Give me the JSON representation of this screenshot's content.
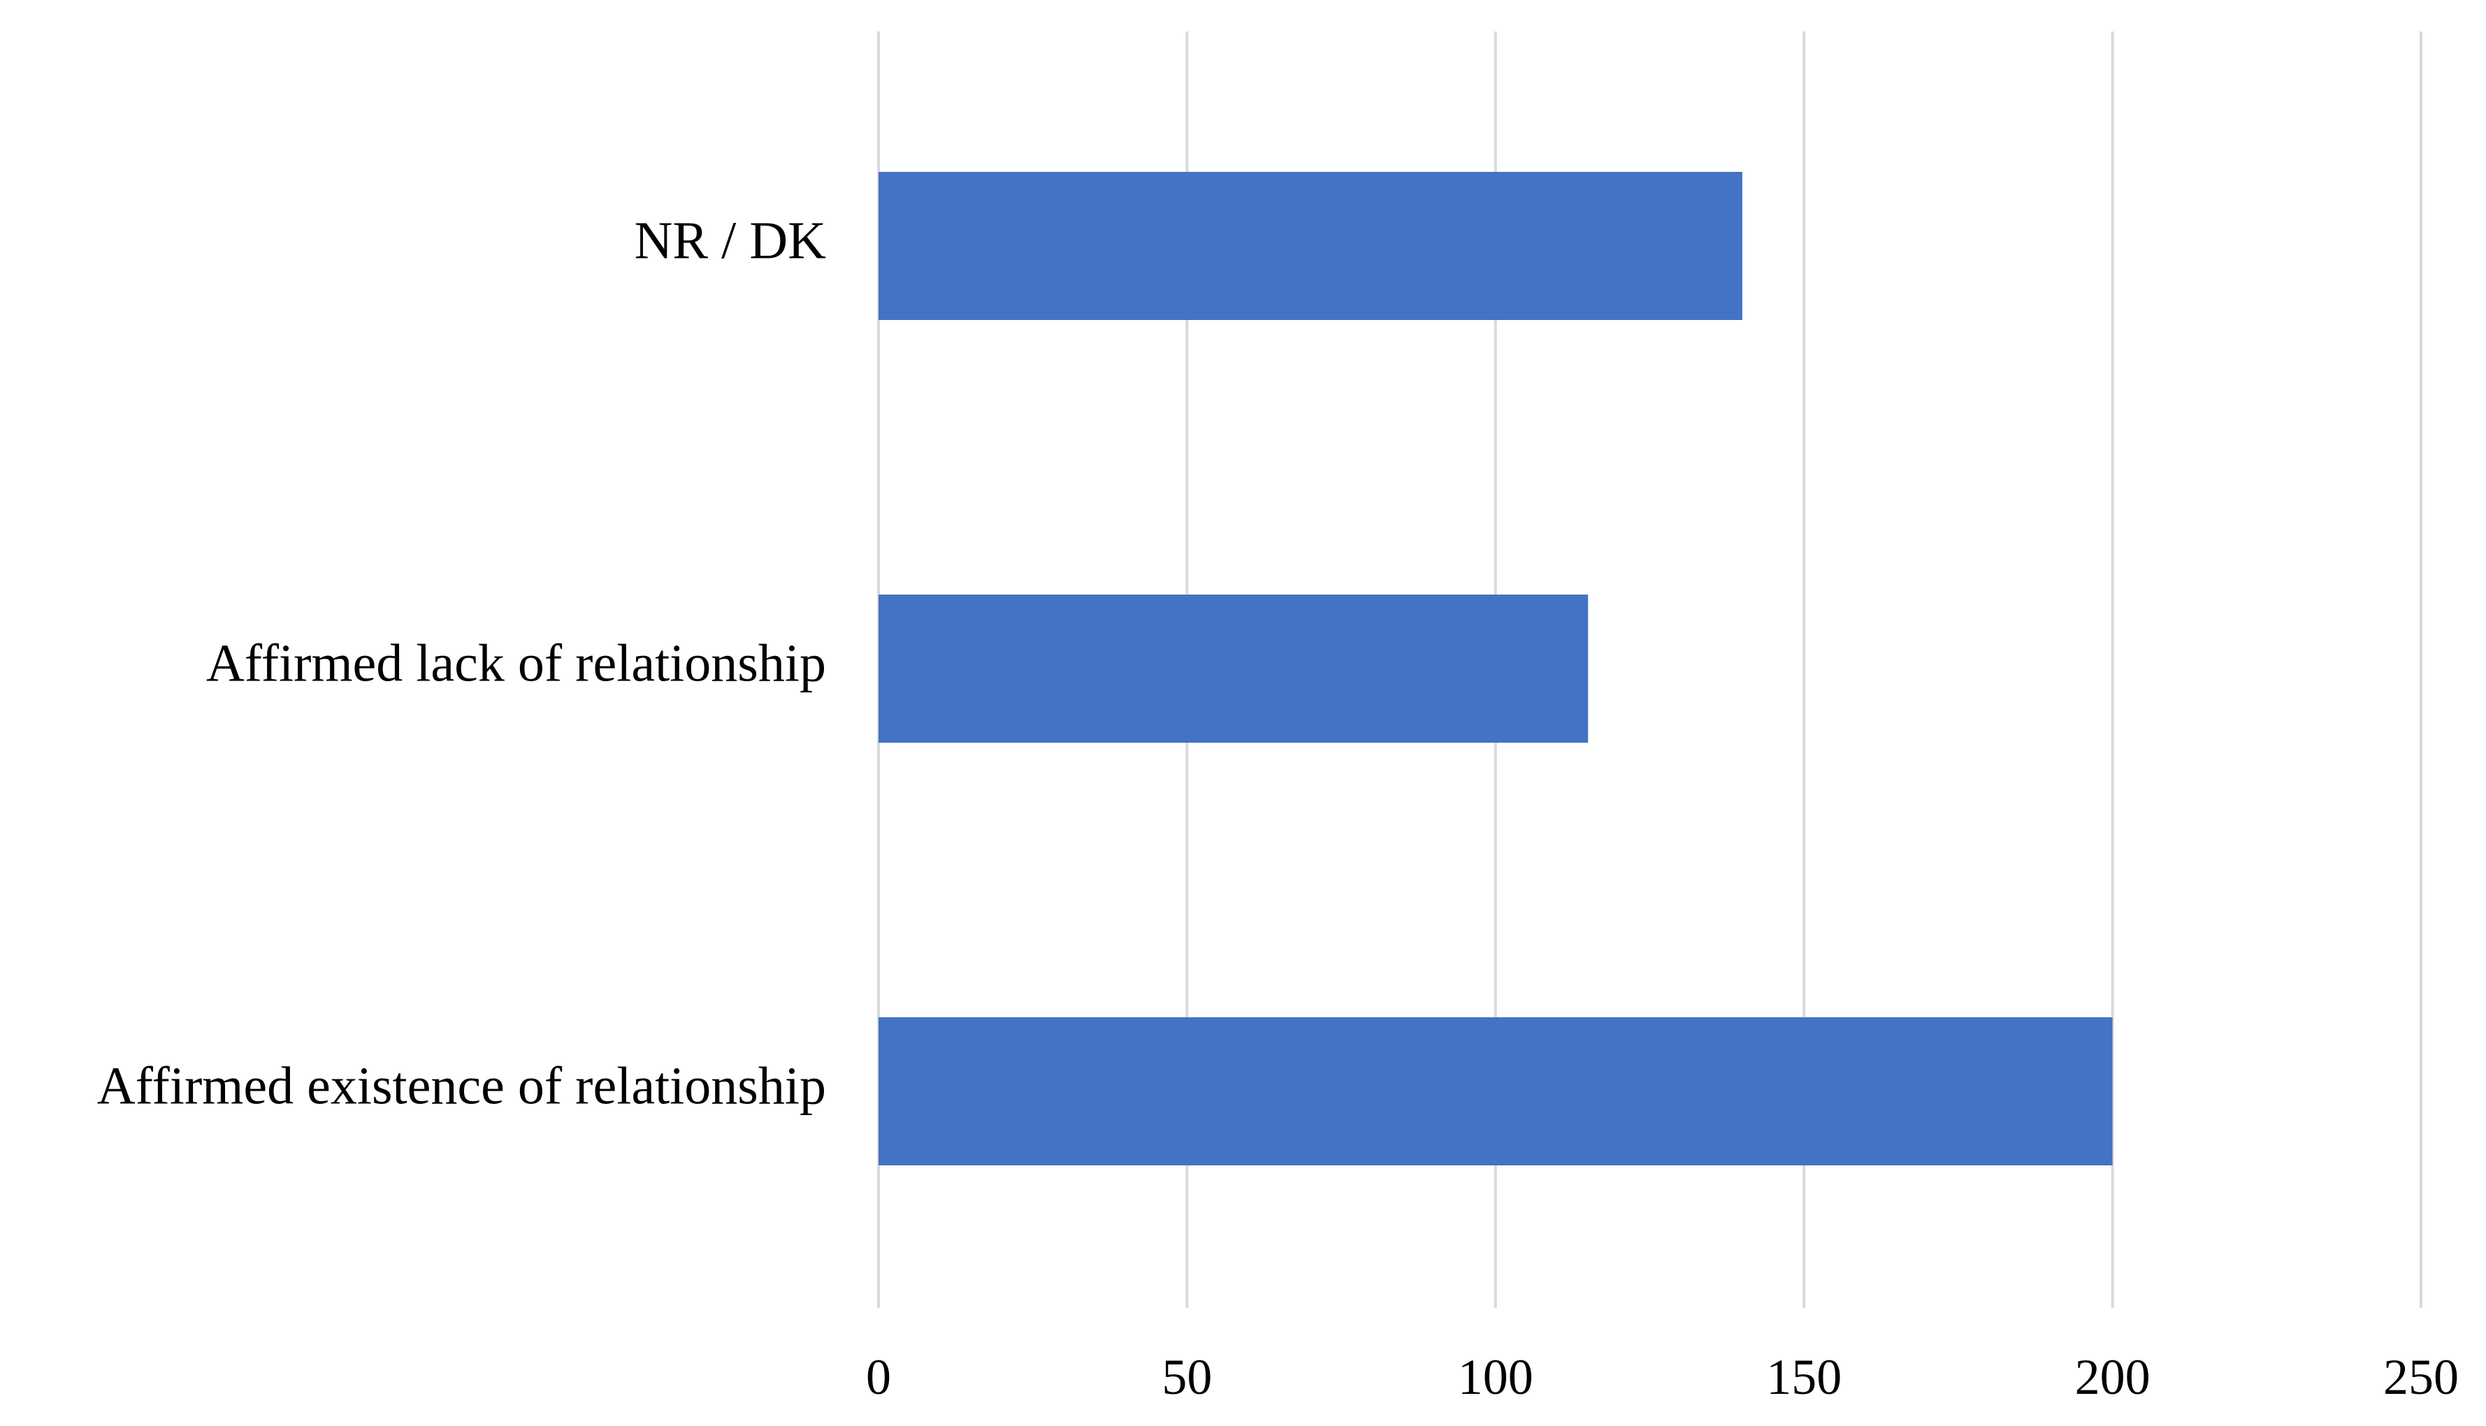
{
  "chart_data": {
    "type": "bar",
    "orientation": "horizontal",
    "categories": [
      "NR / DK",
      "Affirmed lack of relationship",
      "Affirmed existence of relationship"
    ],
    "values": [
      140,
      115,
      200
    ],
    "title": "",
    "xlabel": "",
    "ylabel": "",
    "xlim": [
      0,
      250
    ],
    "xticks": [
      0,
      50,
      100,
      150,
      200,
      250
    ],
    "xtick_labels": [
      "0",
      "50",
      "100",
      "150",
      "200",
      "250"
    ],
    "grid": "vertical",
    "legend": "none",
    "bar_color": "#4472c4",
    "grid_color": "#d9d9d9"
  }
}
